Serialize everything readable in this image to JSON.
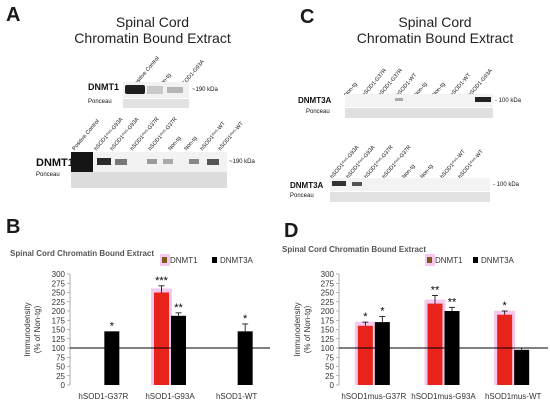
{
  "panels": {
    "A": {
      "letter": "A",
      "title_line1": "Spinal Cord",
      "title_line2": "Chromatin Bound Extract",
      "blot1": {
        "protein": "DNMT1",
        "ponceau": "Ponceau",
        "kda": "~190 kDa",
        "lanes": [
          "Positive Control",
          "Non-tg",
          "hSOD1-G93A"
        ]
      },
      "blot2": {
        "protein": "DNMT1",
        "ponceau": "Ponceau",
        "kda": "~190 kDa",
        "lanes": [
          "Positive Control",
          "hSOD1ᵐᵘˢ-G93A",
          "hSOD1ᵐᵘˢ-G93A",
          "hSOD1ᵐᵘˢ-G37R",
          "hSOD1ᵐᵘˢ-G37R",
          "Non-tg",
          "Non-tg",
          "hSOD1ᵐᵘˢ-WT",
          "hSOD1ᵐᵘˢ-WT"
        ]
      }
    },
    "C": {
      "letter": "C",
      "title_line1": "Spinal Cord",
      "title_line2": "Chromatin Bound Extract",
      "blot1": {
        "protein": "DNMT3A",
        "ponceau": "Ponceau",
        "kda": "- 100 kDa",
        "lanes": [
          "Non-tg",
          "hSOD1-G37R",
          "hSOD1-G37R",
          "hSOD1-WT",
          "Non-tg",
          "Non-tg",
          "hSOD1-WT",
          "hSOD1-G93A"
        ]
      },
      "blot2": {
        "protein": "DNMT3A",
        "ponceau": "Ponceau",
        "kda": "- 100 kDa",
        "lanes": [
          "hSOD1ᵐᵘˢ-G93A",
          "hSOD1ᵐᵘˢ-G93A",
          "hSOD1ᵐᵘˢ-G37R",
          "hSOD1ᵐᵘˢ-G37R",
          "Non-tg",
          "Non-tg",
          "hSOD1ᵐᵘˢ-WT",
          "hSOD1ᵐᵘˢ-WT"
        ]
      }
    },
    "B": {
      "letter": "B"
    },
    "D": {
      "letter": "D"
    }
  },
  "chart_data": [
    {
      "type": "bar",
      "panel": "B",
      "title": "Spinal Cord Chromatin Bound Extract",
      "ylabel": "Immunodensity (% of Non-tg)",
      "ylim": [
        0,
        300
      ],
      "yticks": [
        0,
        25,
        50,
        75,
        100,
        125,
        150,
        175,
        200,
        225,
        250,
        275,
        300
      ],
      "reference_line": 100,
      "categories": [
        "hSOD1-G37R",
        "hSOD1-G93A",
        "hSOD1-WT"
      ],
      "series": [
        {
          "name": "DNMT1",
          "color": "#e8231b",
          "values": [
            null,
            250,
            null
          ],
          "errors": [
            null,
            18,
            null
          ],
          "significance": [
            "",
            "***",
            ""
          ]
        },
        {
          "name": "DNMT3A",
          "color": "#000000",
          "values": [
            145,
            187,
            145
          ],
          "errors": [
            null,
            8,
            20
          ],
          "significance": [
            "*",
            "**",
            "*"
          ]
        }
      ],
      "legend": "top-right"
    },
    {
      "type": "bar",
      "panel": "D",
      "title": "Spinal Cord Chromatin Bound Extract",
      "ylabel": "Immunodensity (% of Non-tg)",
      "ylim": [
        0,
        300
      ],
      "yticks": [
        0,
        25,
        50,
        75,
        100,
        125,
        150,
        175,
        200,
        225,
        250,
        275,
        300
      ],
      "reference_line": 100,
      "categories": [
        "hSOD1mus-G37R",
        "hSOD1mus-G93A",
        "hSOD1mus-WT"
      ],
      "series": [
        {
          "name": "DNMT1",
          "color": "#e8231b",
          "values": [
            160,
            220,
            190
          ],
          "errors": [
            10,
            22,
            10
          ],
          "significance": [
            "*",
            "**",
            "*"
          ]
        },
        {
          "name": "DNMT3A",
          "color": "#000000",
          "values": [
            170,
            200,
            95
          ],
          "errors": [
            15,
            10,
            5
          ],
          "significance": [
            "*",
            "**",
            ""
          ]
        }
      ],
      "legend": "top-right"
    }
  ]
}
